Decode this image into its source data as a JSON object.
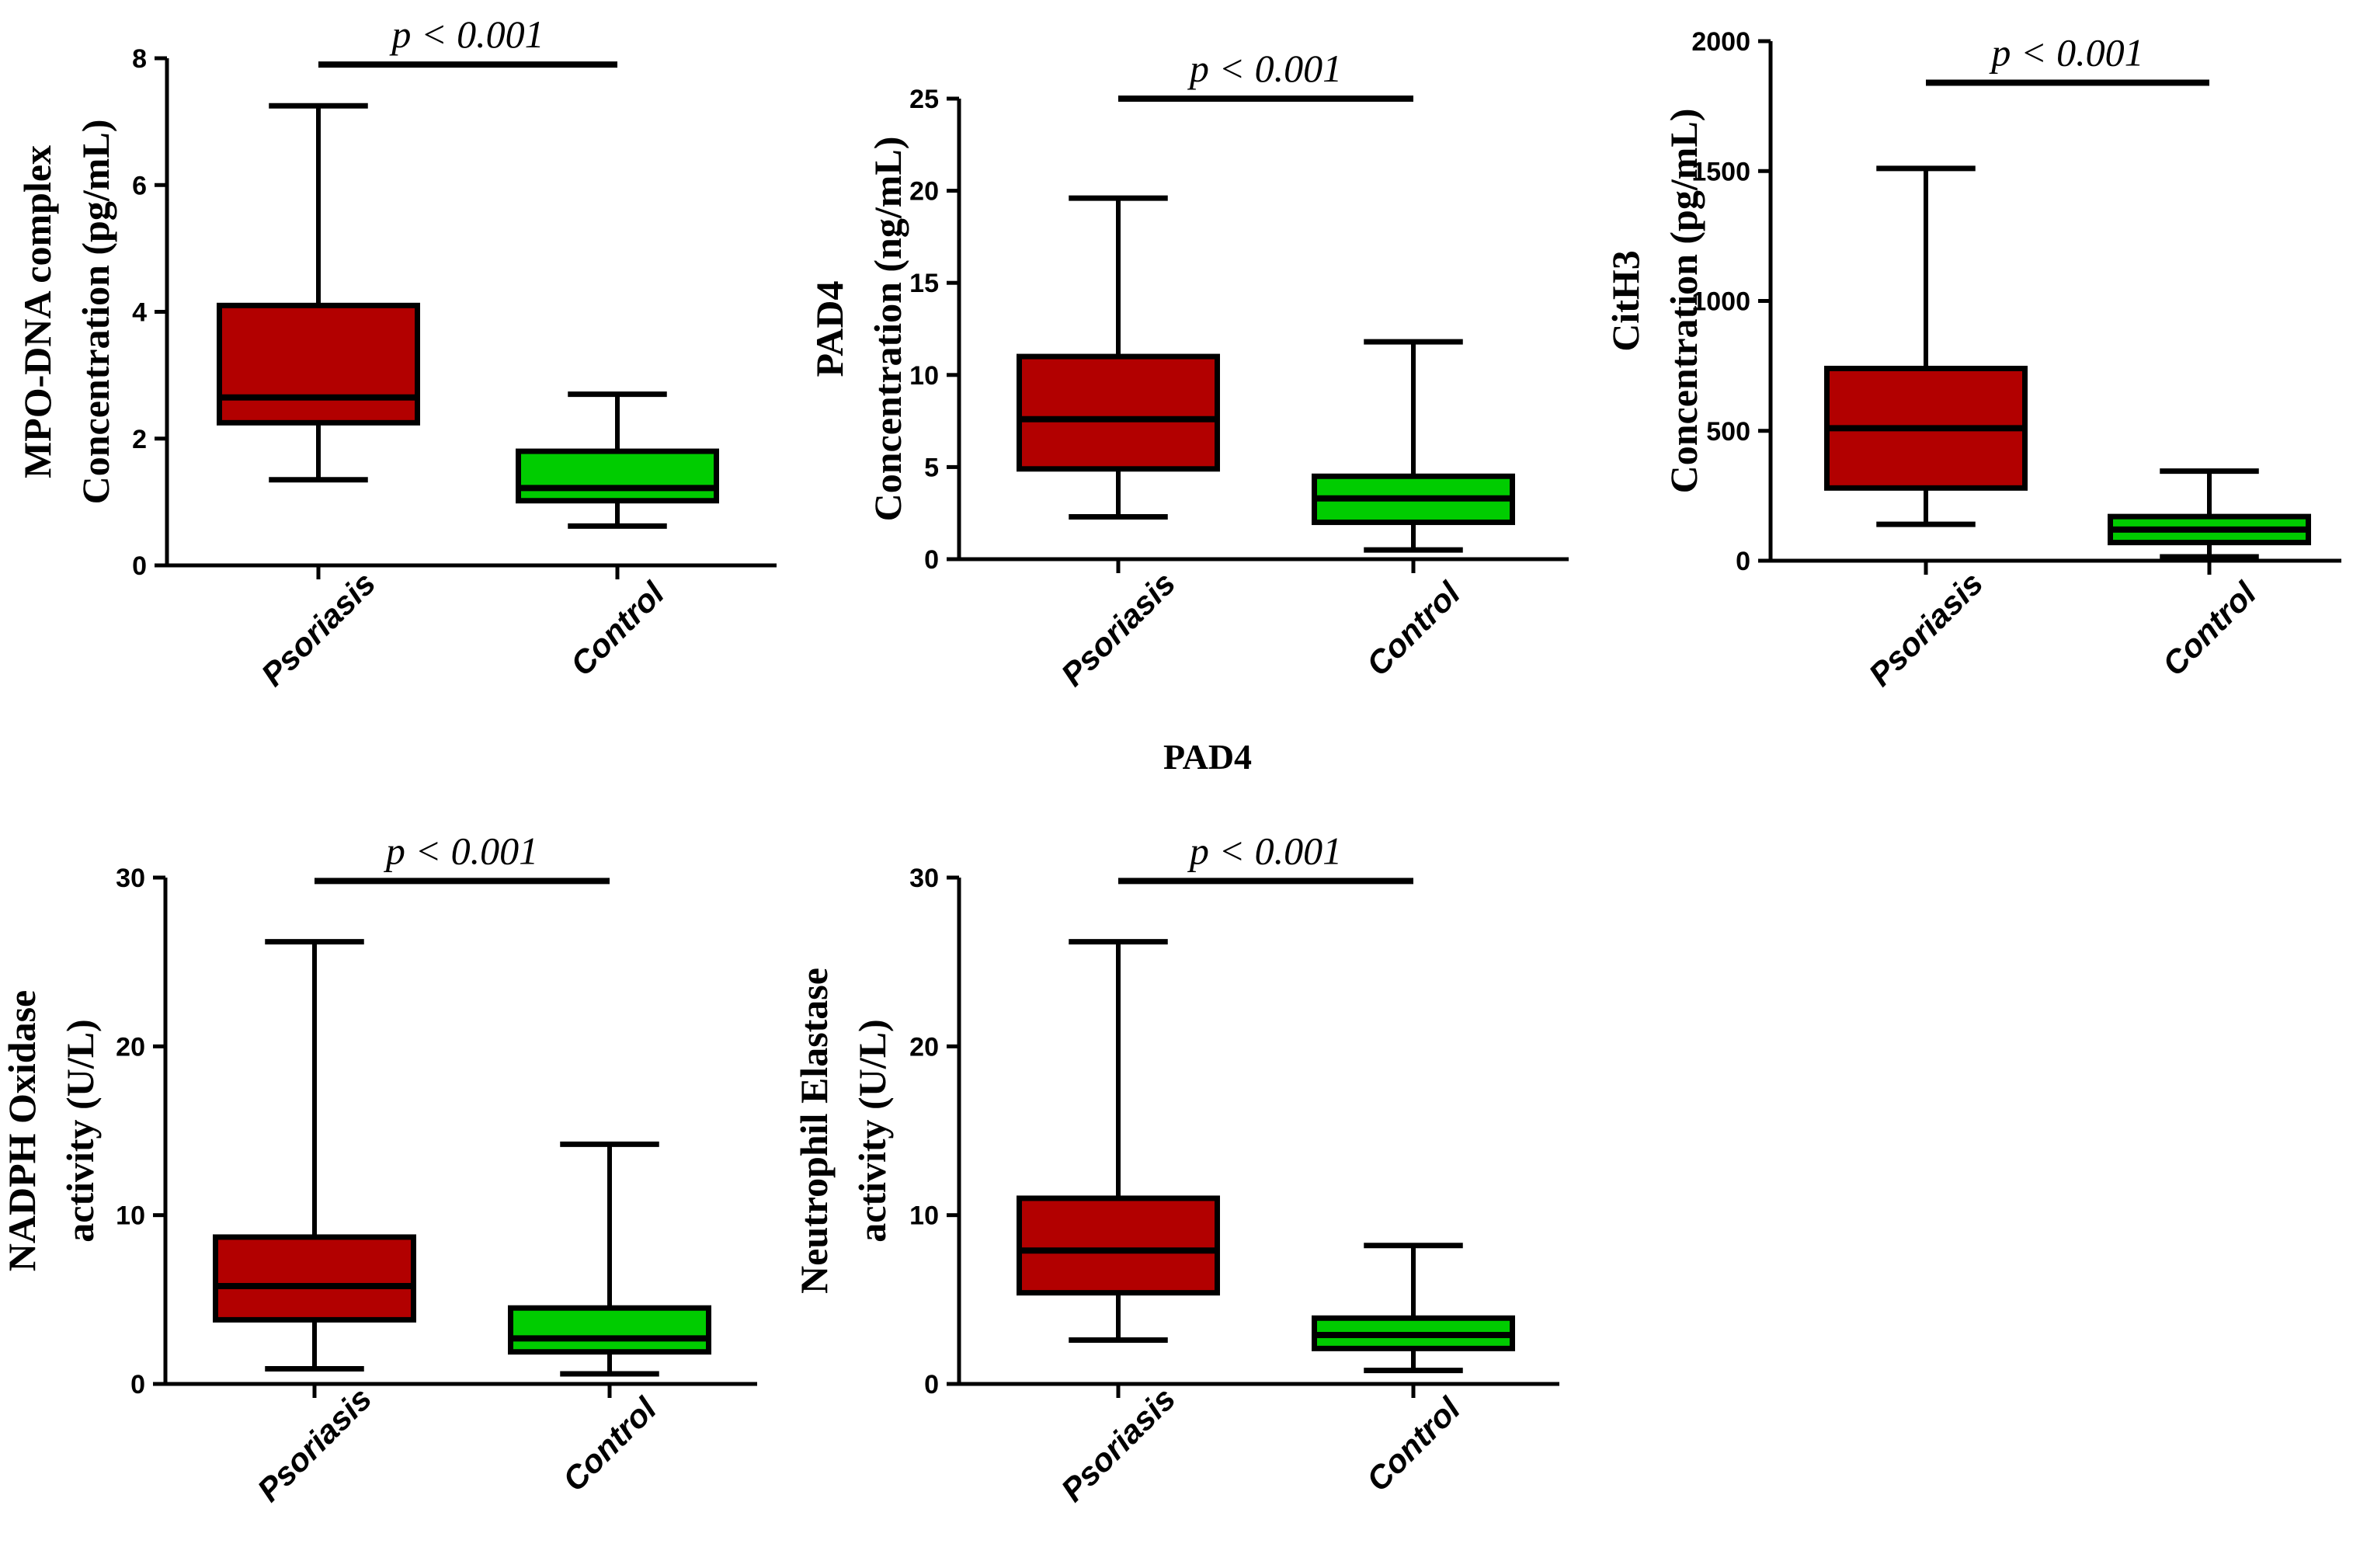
{
  "figure_caption": "PAD4",
  "colors": {
    "psoriasis": "#b20000",
    "control": "#00cc00",
    "line": "#000000"
  },
  "chart_data": [
    {
      "type": "box",
      "ylabel": [
        "MPO-DNA complex",
        "Concentration (pg/mL)"
      ],
      "ylim": [
        0,
        8
      ],
      "yticks": [
        0,
        2,
        4,
        6,
        8
      ],
      "categories": [
        "Psoriasis",
        "Control"
      ],
      "pvalue": "p < 0.001",
      "pvalue_y": 7.9,
      "boxes": [
        {
          "group": "Psoriasis",
          "min": 1.35,
          "q1": 2.25,
          "median": 2.65,
          "q3": 4.1,
          "max": 7.25
        },
        {
          "group": "Control",
          "min": 0.62,
          "q1": 1.02,
          "median": 1.22,
          "q3": 1.8,
          "max": 2.7
        }
      ]
    },
    {
      "type": "box",
      "ylabel": [
        "PAD4",
        "Concentration (ng/mL)"
      ],
      "ylim": [
        0,
        25
      ],
      "yticks": [
        0,
        5,
        10,
        15,
        20,
        25
      ],
      "categories": [
        "Psoriasis",
        "Control"
      ],
      "pvalue": "p < 0.001",
      "pvalue_y": 25,
      "boxes": [
        {
          "group": "Psoriasis",
          "min": 2.3,
          "q1": 4.9,
          "median": 7.6,
          "q3": 11.0,
          "max": 19.6
        },
        {
          "group": "Control",
          "min": 0.5,
          "q1": 2.0,
          "median": 3.3,
          "q3": 4.5,
          "max": 11.8
        }
      ]
    },
    {
      "type": "box",
      "ylabel": [
        "CitH3",
        "Concentration (pg/mL)"
      ],
      "ylim": [
        0,
        2000
      ],
      "yticks": [
        0,
        500,
        1000,
        1500,
        2000
      ],
      "categories": [
        "Psoriasis",
        "Control"
      ],
      "pvalue": "p < 0.001",
      "pvalue_y": 1840,
      "boxes": [
        {
          "group": "Psoriasis",
          "min": 140,
          "q1": 280,
          "median": 510,
          "q3": 740,
          "max": 1510
        },
        {
          "group": "Control",
          "min": 15,
          "q1": 70,
          "median": 120,
          "q3": 170,
          "max": 345
        }
      ]
    },
    {
      "type": "box",
      "ylabel": [
        "NADPH Oxidase",
        "activity (U/L)"
      ],
      "ylim": [
        0,
        30
      ],
      "yticks": [
        0,
        10,
        20,
        30
      ],
      "categories": [
        "Psoriasis",
        "Control"
      ],
      "pvalue": "p < 0.001",
      "pvalue_y": 29.8,
      "boxes": [
        {
          "group": "Psoriasis",
          "min": 0.9,
          "q1": 3.8,
          "median": 5.8,
          "q3": 8.7,
          "max": 26.2
        },
        {
          "group": "Control",
          "min": 0.6,
          "q1": 1.9,
          "median": 2.7,
          "q3": 4.5,
          "max": 14.2
        }
      ]
    },
    {
      "type": "box",
      "ylabel": [
        "Neutrophil Elastase",
        "activity (U/L)"
      ],
      "ylim": [
        0,
        30
      ],
      "yticks": [
        0,
        10,
        20,
        30
      ],
      "categories": [
        "Psoriasis",
        "Control"
      ],
      "pvalue": "p < 0.001",
      "pvalue_y": 29.8,
      "boxes": [
        {
          "group": "Psoriasis",
          "min": 2.6,
          "q1": 5.4,
          "median": 7.9,
          "q3": 11.0,
          "max": 26.2
        },
        {
          "group": "Control",
          "min": 0.8,
          "q1": 2.1,
          "median": 2.9,
          "q3": 3.9,
          "max": 8.2
        }
      ]
    }
  ]
}
